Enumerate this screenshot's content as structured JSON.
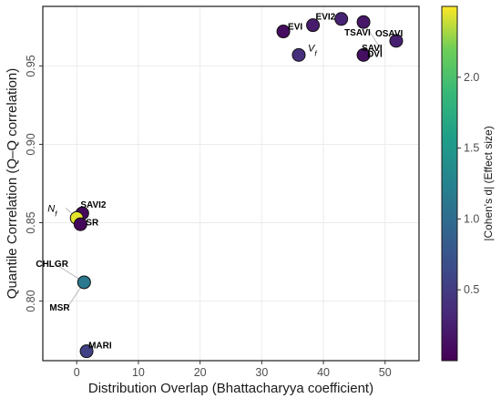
{
  "chart_data": {
    "type": "scatter",
    "xlabel": "Distribution Overlap (Bhattacharyya coefficient)",
    "ylabel": "Quantile Correlation (Q–Q correlation)",
    "xlim": [
      -5.5,
      55.5
    ],
    "ylim": [
      0.762,
      0.988
    ],
    "x_ticks": [
      0,
      10,
      20,
      30,
      40,
      50
    ],
    "y_ticks": [
      0.8,
      0.85,
      0.9,
      0.95
    ],
    "y_tick_labels": [
      "0.80",
      "0.85",
      "0.90",
      "0.95"
    ],
    "grid": true,
    "colorbar": {
      "title": "|Cohen's d| (Effect size)",
      "range": [
        0.0,
        2.5
      ],
      "ticks": [
        0.5,
        1.0,
        1.5,
        2.0
      ],
      "tick_labels": [
        "0.5",
        "1.0",
        "1.5",
        "2.0"
      ],
      "colormap": "viridis"
    },
    "points": [
      {
        "label": "EVI",
        "x": 33.5,
        "y": 0.972,
        "effect": 0.1
      },
      {
        "label": "EVI2",
        "x": 38.3,
        "y": 0.976,
        "effect": 0.22
      },
      {
        "label": "",
        "x": 42.9,
        "y": 0.98,
        "effect": 0.28
      },
      {
        "label": "TSAVI",
        "x": 46.5,
        "y": 0.978,
        "effect": 0.18
      },
      {
        "label": "SAVI",
        "x": 46.5,
        "y": 0.978,
        "effect": 0.18
      },
      {
        "label": "OSAVI",
        "x": 51.8,
        "y": 0.966,
        "effect": 0.25
      },
      {
        "label": "DVI",
        "x": 46.5,
        "y": 0.957,
        "effect": 0.12
      },
      {
        "label": "V",
        "sub": "f",
        "x": 36.0,
        "y": 0.957,
        "effect": 0.4
      },
      {
        "label": "SAVI2",
        "x": 0.9,
        "y": 0.856,
        "effect": 0.08
      },
      {
        "label": "N",
        "sub": "f",
        "x": 0.0,
        "y": 0.853,
        "effect": 2.45
      },
      {
        "label": "SR",
        "x": 0.6,
        "y": 0.849,
        "effect": 0.05
      },
      {
        "label": "CHLGR",
        "x": 1.2,
        "y": 0.812,
        "effect": 1.15
      },
      {
        "label": "MSR",
        "x": 1.2,
        "y": 0.812,
        "effect": 1.15
      },
      {
        "label": "MARI",
        "x": 1.6,
        "y": 0.768,
        "effect": 0.55
      }
    ]
  }
}
